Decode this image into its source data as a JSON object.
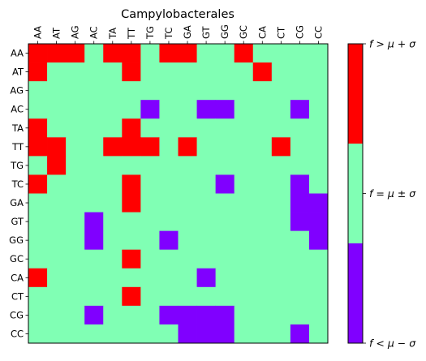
{
  "chart_data": {
    "type": "heatmap",
    "title": "Campylobacterales",
    "row_labels": [
      "AA",
      "AT",
      "AG",
      "AC",
      "TA",
      "TT",
      "TG",
      "TC",
      "GA",
      "GT",
      "GG",
      "GC",
      "CA",
      "CT",
      "CG",
      "CC"
    ],
    "col_labels": [
      "AA",
      "AT",
      "AG",
      "AC",
      "TA",
      "TT",
      "TG",
      "TC",
      "GA",
      "GT",
      "GG",
      "GC",
      "CA",
      "CT",
      "CG",
      "CC"
    ],
    "category_codes": {
      "1": "f > μ + σ",
      "0": "f = μ ± σ",
      "-1": "f < μ − σ"
    },
    "category_colors": {
      "1": "#ff0000",
      "0": "#80ffb4",
      "-1": "#8000ff"
    },
    "matrix": [
      [
        1,
        1,
        1,
        0,
        1,
        1,
        0,
        1,
        1,
        0,
        0,
        1,
        0,
        0,
        0,
        0
      ],
      [
        1,
        0,
        0,
        0,
        0,
        1,
        0,
        0,
        0,
        0,
        0,
        0,
        1,
        0,
        0,
        0
      ],
      [
        0,
        0,
        0,
        0,
        0,
        0,
        0,
        0,
        0,
        0,
        0,
        0,
        0,
        0,
        0,
        0
      ],
      [
        0,
        0,
        0,
        0,
        0,
        0,
        -1,
        0,
        0,
        -1,
        -1,
        0,
        0,
        0,
        -1,
        0
      ],
      [
        1,
        0,
        0,
        0,
        0,
        1,
        0,
        0,
        0,
        0,
        0,
        0,
        0,
        0,
        0,
        0
      ],
      [
        1,
        1,
        0,
        0,
        1,
        1,
        1,
        0,
        1,
        0,
        0,
        0,
        0,
        1,
        0,
        0
      ],
      [
        0,
        1,
        0,
        0,
        0,
        0,
        0,
        0,
        0,
        0,
        0,
        0,
        0,
        0,
        0,
        0
      ],
      [
        1,
        0,
        0,
        0,
        0,
        1,
        0,
        0,
        0,
        0,
        -1,
        0,
        0,
        0,
        -1,
        0
      ],
      [
        0,
        0,
        0,
        0,
        0,
        1,
        0,
        0,
        0,
        0,
        0,
        0,
        0,
        0,
        -1,
        -1
      ],
      [
        0,
        0,
        0,
        -1,
        0,
        0,
        0,
        0,
        0,
        0,
        0,
        0,
        0,
        0,
        -1,
        -1
      ],
      [
        0,
        0,
        0,
        -1,
        0,
        0,
        0,
        -1,
        0,
        0,
        0,
        0,
        0,
        0,
        0,
        -1
      ],
      [
        0,
        0,
        0,
        0,
        0,
        1,
        0,
        0,
        0,
        0,
        0,
        0,
        0,
        0,
        0,
        0
      ],
      [
        1,
        0,
        0,
        0,
        0,
        0,
        0,
        0,
        0,
        -1,
        0,
        0,
        0,
        0,
        0,
        0
      ],
      [
        0,
        0,
        0,
        0,
        0,
        1,
        0,
        0,
        0,
        0,
        0,
        0,
        0,
        0,
        0,
        0
      ],
      [
        0,
        0,
        0,
        -1,
        0,
        0,
        0,
        -1,
        -1,
        -1,
        -1,
        0,
        0,
        0,
        0,
        0
      ],
      [
        0,
        0,
        0,
        0,
        0,
        0,
        0,
        0,
        -1,
        -1,
        -1,
        0,
        0,
        0,
        -1,
        0
      ]
    ],
    "colorbar": {
      "labels": [
        "f > μ + σ",
        "f = μ ± σ",
        "f < μ − σ"
      ],
      "colors": [
        "#ff0000",
        "#80ffb4",
        "#8000ff"
      ]
    }
  }
}
